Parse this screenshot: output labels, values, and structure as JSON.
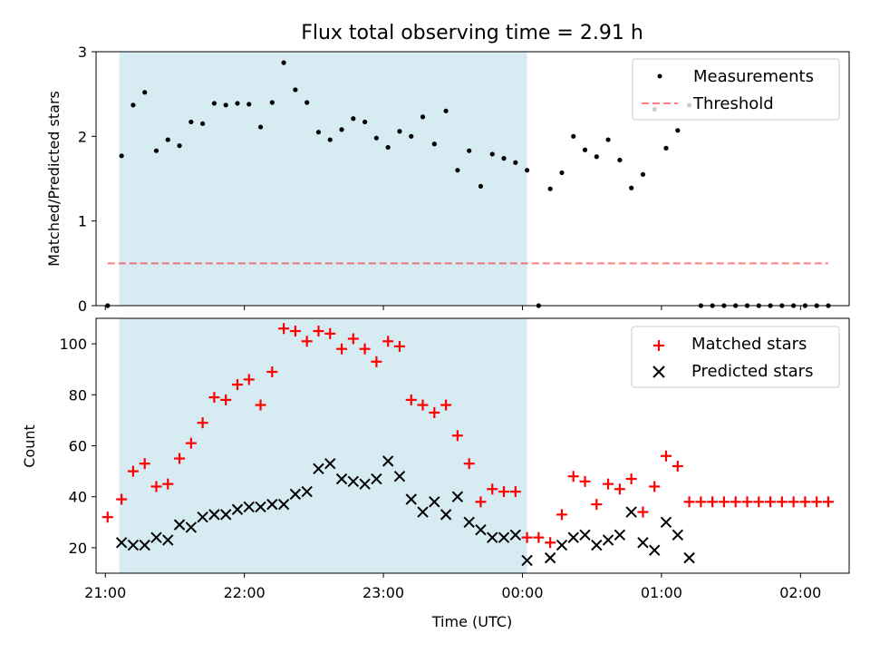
{
  "chart_data": [
    {
      "type": "scatter",
      "title": "Flux total observing time = 2.91 h",
      "ylabel": "Matched/Predicted stars",
      "ylim": [
        0,
        3
      ],
      "yticks": [
        0,
        1,
        2,
        3
      ],
      "xlim": [
        "20:56",
        "02:21"
      ],
      "shaded_region": {
        "x_start": "21:06",
        "x_end": "00:02",
        "color": "#add8e6"
      },
      "legend": {
        "placement": "upper right",
        "entries": [
          "Measurements",
          "Threshold"
        ]
      },
      "threshold": {
        "name": "Threshold",
        "y": 0.5,
        "x_start": "21:01",
        "x_end": "02:12",
        "color": "#ff0000"
      },
      "series": [
        {
          "name": "Measurements",
          "color": "#000000",
          "points": [
            [
              "21:01",
              0.0
            ],
            [
              "21:07",
              1.77
            ],
            [
              "21:12",
              2.37
            ],
            [
              "21:17",
              2.52
            ],
            [
              "21:22",
              1.83
            ],
            [
              "21:27",
              1.96
            ],
            [
              "21:32",
              1.89
            ],
            [
              "21:37",
              2.17
            ],
            [
              "21:42",
              2.15
            ],
            [
              "21:47",
              2.39
            ],
            [
              "21:52",
              2.37
            ],
            [
              "21:57",
              2.39
            ],
            [
              "22:02",
              2.38
            ],
            [
              "22:07",
              2.11
            ],
            [
              "22:12",
              2.4
            ],
            [
              "22:17",
              2.87
            ],
            [
              "22:22",
              2.55
            ],
            [
              "22:27",
              2.4
            ],
            [
              "22:32",
              2.05
            ],
            [
              "22:37",
              1.96
            ],
            [
              "22:42",
              2.08
            ],
            [
              "22:47",
              2.21
            ],
            [
              "22:52",
              2.17
            ],
            [
              "22:57",
              1.98
            ],
            [
              "23:02",
              1.87
            ],
            [
              "23:07",
              2.06
            ],
            [
              "23:12",
              2.0
            ],
            [
              "23:17",
              2.23
            ],
            [
              "23:22",
              1.91
            ],
            [
              "23:27",
              2.3
            ],
            [
              "23:32",
              1.6
            ],
            [
              "23:37",
              1.83
            ],
            [
              "23:42",
              1.41
            ],
            [
              "23:47",
              1.79
            ],
            [
              "23:52",
              1.74
            ],
            [
              "23:57",
              1.69
            ],
            [
              "00:02",
              1.6
            ],
            [
              "00:07",
              0.0
            ],
            [
              "00:12",
              1.38
            ],
            [
              "00:17",
              1.57
            ],
            [
              "00:22",
              2.0
            ],
            [
              "00:27",
              1.84
            ],
            [
              "00:32",
              1.76
            ],
            [
              "00:37",
              1.96
            ],
            [
              "00:42",
              1.72
            ],
            [
              "00:47",
              1.39
            ],
            [
              "00:52",
              1.55
            ],
            [
              "00:57",
              2.32
            ],
            [
              "01:02",
              1.86
            ],
            [
              "01:07",
              2.07
            ],
            [
              "01:12",
              2.37
            ],
            [
              "01:17",
              0.0
            ],
            [
              "01:22",
              0.0
            ],
            [
              "01:27",
              0.0
            ],
            [
              "01:32",
              0.0
            ],
            [
              "01:37",
              0.0
            ],
            [
              "01:42",
              0.0
            ],
            [
              "01:47",
              0.0
            ],
            [
              "01:52",
              0.0
            ],
            [
              "01:57",
              0.0
            ],
            [
              "02:02",
              0.0
            ],
            [
              "02:07",
              0.0
            ],
            [
              "02:12",
              0.0
            ]
          ]
        }
      ]
    },
    {
      "type": "scatter",
      "xlabel": "Time (UTC)",
      "ylabel": "Count",
      "ylim": [
        10,
        110
      ],
      "yticks": [
        20,
        40,
        60,
        80,
        100
      ],
      "xlim": [
        "20:56",
        "02:21"
      ],
      "xticks": [
        "21:00",
        "22:00",
        "23:00",
        "00:00",
        "01:00",
        "02:00"
      ],
      "shaded_region": {
        "x_start": "21:06",
        "x_end": "00:02",
        "color": "#add8e6"
      },
      "legend": {
        "placement": "upper right",
        "entries": [
          "Matched stars",
          "Predicted stars"
        ]
      },
      "series": [
        {
          "name": "Matched stars",
          "marker": "+",
          "color": "#ff0000",
          "points": [
            [
              "21:01",
              32
            ],
            [
              "21:07",
              39
            ],
            [
              "21:12",
              50
            ],
            [
              "21:17",
              53
            ],
            [
              "21:22",
              44
            ],
            [
              "21:27",
              45
            ],
            [
              "21:32",
              55
            ],
            [
              "21:37",
              61
            ],
            [
              "21:42",
              69
            ],
            [
              "21:47",
              79
            ],
            [
              "21:52",
              78
            ],
            [
              "21:57",
              84
            ],
            [
              "22:02",
              86
            ],
            [
              "22:07",
              76
            ],
            [
              "22:12",
              89
            ],
            [
              "22:17",
              106
            ],
            [
              "22:22",
              105
            ],
            [
              "22:27",
              101
            ],
            [
              "22:32",
              105
            ],
            [
              "22:37",
              104
            ],
            [
              "22:42",
              98
            ],
            [
              "22:47",
              102
            ],
            [
              "22:52",
              98
            ],
            [
              "22:57",
              93
            ],
            [
              "23:02",
              101
            ],
            [
              "23:07",
              99
            ],
            [
              "23:12",
              78
            ],
            [
              "23:17",
              76
            ],
            [
              "23:22",
              73
            ],
            [
              "23:27",
              76
            ],
            [
              "23:32",
              64
            ],
            [
              "23:37",
              53
            ],
            [
              "23:42",
              38
            ],
            [
              "23:47",
              43
            ],
            [
              "23:52",
              42
            ],
            [
              "23:57",
              42
            ],
            [
              "00:02",
              24
            ],
            [
              "00:07",
              24
            ],
            [
              "00:12",
              22
            ],
            [
              "00:17",
              33
            ],
            [
              "00:22",
              48
            ],
            [
              "00:27",
              46
            ],
            [
              "00:32",
              37
            ],
            [
              "00:37",
              45
            ],
            [
              "00:42",
              43
            ],
            [
              "00:47",
              47
            ],
            [
              "00:52",
              34
            ],
            [
              "00:57",
              44
            ],
            [
              "01:02",
              56
            ],
            [
              "01:07",
              52
            ],
            [
              "01:12",
              38
            ],
            [
              "01:17",
              38
            ],
            [
              "01:22",
              38
            ],
            [
              "01:27",
              38
            ],
            [
              "01:32",
              38
            ],
            [
              "01:37",
              38
            ],
            [
              "01:42",
              38
            ],
            [
              "01:47",
              38
            ],
            [
              "01:52",
              38
            ],
            [
              "01:57",
              38
            ],
            [
              "02:02",
              38
            ],
            [
              "02:07",
              38
            ],
            [
              "02:12",
              38
            ]
          ]
        },
        {
          "name": "Predicted stars",
          "marker": "x",
          "color": "#000000",
          "points": [
            [
              "21:07",
              22
            ],
            [
              "21:12",
              21
            ],
            [
              "21:17",
              21
            ],
            [
              "21:22",
              24
            ],
            [
              "21:27",
              23
            ],
            [
              "21:32",
              29
            ],
            [
              "21:37",
              28
            ],
            [
              "21:42",
              32
            ],
            [
              "21:47",
              33
            ],
            [
              "21:52",
              33
            ],
            [
              "21:57",
              35
            ],
            [
              "22:02",
              36
            ],
            [
              "22:07",
              36
            ],
            [
              "22:12",
              37
            ],
            [
              "22:17",
              37
            ],
            [
              "22:22",
              41
            ],
            [
              "22:27",
              42
            ],
            [
              "22:32",
              51
            ],
            [
              "22:37",
              53
            ],
            [
              "22:42",
              47
            ],
            [
              "22:47",
              46
            ],
            [
              "22:52",
              45
            ],
            [
              "22:57",
              47
            ],
            [
              "23:02",
              54
            ],
            [
              "23:07",
              48
            ],
            [
              "23:12",
              39
            ],
            [
              "23:17",
              34
            ],
            [
              "23:22",
              38
            ],
            [
              "23:27",
              33
            ],
            [
              "23:32",
              40
            ],
            [
              "23:37",
              30
            ],
            [
              "23:42",
              27
            ],
            [
              "23:47",
              24
            ],
            [
              "23:52",
              24
            ],
            [
              "23:57",
              25
            ],
            [
              "00:02",
              15
            ],
            [
              "00:12",
              16
            ],
            [
              "00:17",
              21
            ],
            [
              "00:22",
              24
            ],
            [
              "00:27",
              25
            ],
            [
              "00:32",
              21
            ],
            [
              "00:37",
              23
            ],
            [
              "00:42",
              25
            ],
            [
              "00:47",
              34
            ],
            [
              "00:52",
              22
            ],
            [
              "00:57",
              19
            ],
            [
              "01:02",
              30
            ],
            [
              "01:07",
              25
            ],
            [
              "01:12",
              16
            ]
          ]
        }
      ]
    }
  ]
}
